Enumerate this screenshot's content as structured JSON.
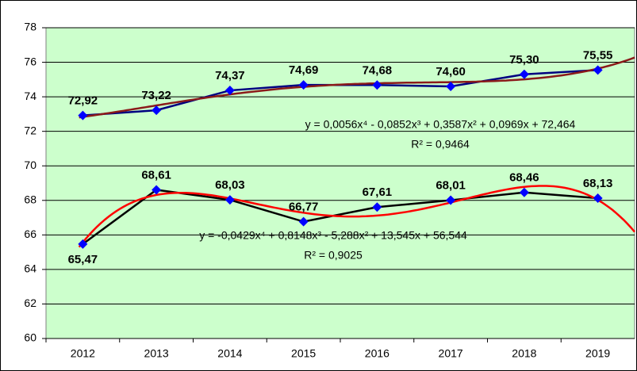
{
  "chart_data": {
    "type": "line",
    "categories": [
      "2012",
      "2013",
      "2014",
      "2015",
      "2016",
      "2017",
      "2018",
      "2019"
    ],
    "series": [
      {
        "color": "#000080",
        "marker_color": "#0000ff",
        "trendline_color": "#8b1a1a",
        "values": [
          72.92,
          73.22,
          74.37,
          74.69,
          74.68,
          74.6,
          75.3,
          75.55
        ],
        "value_labels": [
          "72,92",
          "73,22",
          "74,37",
          "74,69",
          "74,68",
          "74,60",
          "75,30",
          "75,55"
        ]
      },
      {
        "color": "#000000",
        "marker_color": "#0000ff",
        "trendline_color": "#ff0000",
        "values": [
          65.47,
          68.61,
          68.03,
          66.77,
          67.61,
          68.01,
          68.46,
          68.13
        ],
        "value_labels": [
          "65,47",
          "68,61",
          "68,03",
          "66,77",
          "67,61",
          "68,01",
          "68,46",
          "68,13"
        ]
      }
    ],
    "annotations": [
      {
        "equation": "y = 0,0056x⁴ - 0,0852x³ + 0,3587x² + 0,0969x + 72,464",
        "r2": "R² = 0,9464"
      },
      {
        "equation": "y = -0,0429x⁴ + 0,8148x³ - 5,288x² + 13,545x + 56,544",
        "r2": "R² = 0,9025"
      }
    ],
    "ylim": [
      60,
      78
    ],
    "yticks": [
      60,
      62,
      64,
      66,
      68,
      70,
      72,
      74,
      76,
      78
    ],
    "grid": true,
    "plot_background": "#ccffcc"
  }
}
